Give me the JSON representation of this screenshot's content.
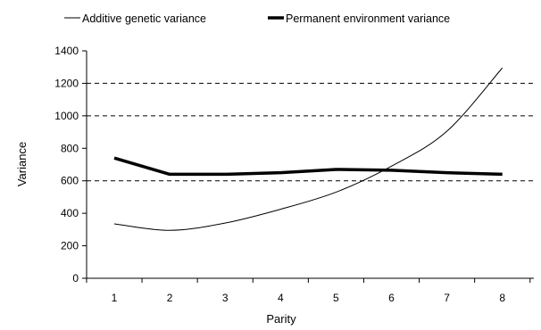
{
  "chart_data": {
    "type": "line",
    "x": [
      1,
      2,
      3,
      4,
      5,
      6,
      7,
      8
    ],
    "series": [
      {
        "name": "Additive genetic variance",
        "values": [
          335,
          295,
          340,
          425,
          530,
          690,
          905,
          1295
        ],
        "style": "thin"
      },
      {
        "name": "Permanent environment variance",
        "values": [
          740,
          640,
          640,
          650,
          670,
          665,
          650,
          640
        ],
        "style": "thick"
      }
    ],
    "xlabel": "Parity",
    "ylabel": "Variance",
    "xticks": [
      "1",
      "2",
      "3",
      "4",
      "5",
      "6",
      "7",
      "8"
    ],
    "yticks": [
      "0",
      "200",
      "400",
      "600",
      "800",
      "1000",
      "1200",
      "1400"
    ],
    "ylim": [
      0,
      1400
    ],
    "gridlines_y": [
      600,
      1000,
      1200
    ],
    "gridline_style": "dashed",
    "legend_position": "top",
    "line_color": "#000000"
  }
}
